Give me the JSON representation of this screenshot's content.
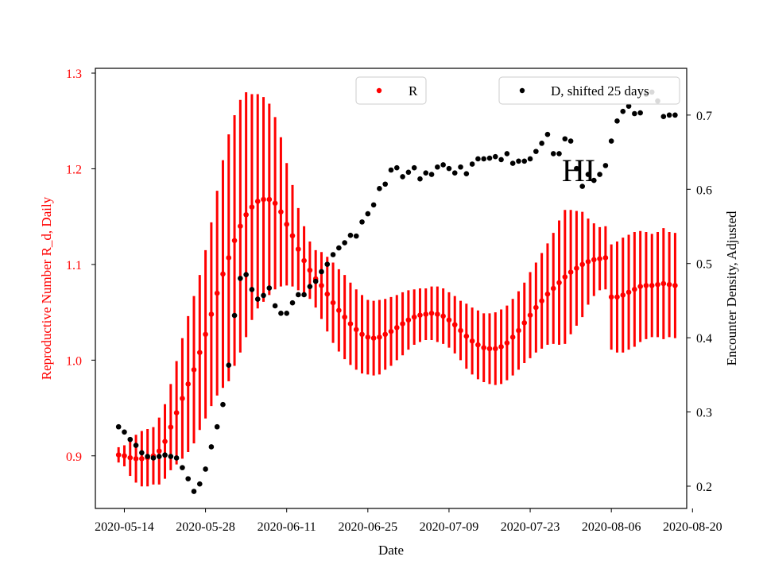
{
  "colors": {
    "r_series": "#ff0000",
    "d_series": "#000000",
    "axis": "#000000",
    "background": "#ffffff"
  },
  "chart_data": {
    "type": "scatter",
    "title": "",
    "xlabel": "Date",
    "ylabel_left": "Reproductive Number R_d, Daily",
    "ylabel_right": "Encounter Density, Adjusted",
    "x_ticks": [
      "2020-05-14",
      "2020-05-28",
      "2020-06-11",
      "2020-06-25",
      "2020-07-09",
      "2020-07-23",
      "2020-08-06",
      "2020-08-20"
    ],
    "y_left_ticks": [
      "0.9",
      "1.0",
      "1.1",
      "1.2",
      "1.3"
    ],
    "y_right_ticks": [
      "0.2",
      "0.3",
      "0.4",
      "0.5",
      "0.6",
      "0.7"
    ],
    "xlim": [
      "2020-05-09",
      "2020-08-19"
    ],
    "ylim_left": [
      0.845,
      1.305
    ],
    "ylim_right": [
      0.17,
      0.763
    ],
    "annotation": "HI",
    "grid": false,
    "legend": [
      {
        "label": "R",
        "placement": "top-center"
      },
      {
        "label": "D, shifted 25 days",
        "placement": "top-right"
      }
    ],
    "series": [
      {
        "name": "R",
        "axis": "left",
        "color": "#ff0000",
        "marker": "dot with error bar",
        "x": [
          "2020-05-13",
          "2020-05-14",
          "2020-05-15",
          "2020-05-16",
          "2020-05-17",
          "2020-05-18",
          "2020-05-19",
          "2020-05-20",
          "2020-05-21",
          "2020-05-22",
          "2020-05-23",
          "2020-05-24",
          "2020-05-25",
          "2020-05-26",
          "2020-05-27",
          "2020-05-28",
          "2020-05-29",
          "2020-05-30",
          "2020-05-31",
          "2020-06-01",
          "2020-06-02",
          "2020-06-03",
          "2020-06-04",
          "2020-06-05",
          "2020-06-06",
          "2020-06-07",
          "2020-06-08",
          "2020-06-09",
          "2020-06-10",
          "2020-06-11",
          "2020-06-12",
          "2020-06-13",
          "2020-06-14",
          "2020-06-15",
          "2020-06-16",
          "2020-06-17",
          "2020-06-18",
          "2020-06-19",
          "2020-06-20",
          "2020-06-21",
          "2020-06-22",
          "2020-06-23",
          "2020-06-24",
          "2020-06-25",
          "2020-06-26",
          "2020-06-27",
          "2020-06-28",
          "2020-06-29",
          "2020-06-30",
          "2020-07-01",
          "2020-07-02",
          "2020-07-03",
          "2020-07-04",
          "2020-07-05",
          "2020-07-06",
          "2020-07-07",
          "2020-07-08",
          "2020-07-09",
          "2020-07-10",
          "2020-07-11",
          "2020-07-12",
          "2020-07-13",
          "2020-07-14",
          "2020-07-15",
          "2020-07-16",
          "2020-07-17",
          "2020-07-18",
          "2020-07-19",
          "2020-07-20",
          "2020-07-21",
          "2020-07-22",
          "2020-07-23",
          "2020-07-24",
          "2020-07-25",
          "2020-07-26",
          "2020-07-27",
          "2020-07-28",
          "2020-07-29",
          "2020-07-30",
          "2020-07-31",
          "2020-08-01",
          "2020-08-02",
          "2020-08-03",
          "2020-08-04",
          "2020-08-05",
          "2020-08-06",
          "2020-08-07",
          "2020-08-08",
          "2020-08-09",
          "2020-08-10",
          "2020-08-11",
          "2020-08-12",
          "2020-08-13",
          "2020-08-14",
          "2020-08-15",
          "2020-08-16",
          "2020-08-17"
        ],
        "y": [
          0.901,
          0.9,
          0.898,
          0.897,
          0.897,
          0.898,
          0.9,
          0.905,
          0.915,
          0.93,
          0.945,
          0.96,
          0.975,
          0.99,
          1.008,
          1.027,
          1.048,
          1.07,
          1.09,
          1.107,
          1.125,
          1.14,
          1.152,
          1.16,
          1.166,
          1.168,
          1.168,
          1.164,
          1.155,
          1.142,
          1.13,
          1.116,
          1.104,
          1.094,
          1.085,
          1.078,
          1.069,
          1.06,
          1.052,
          1.045,
          1.038,
          1.032,
          1.027,
          1.024,
          1.023,
          1.024,
          1.027,
          1.03,
          1.034,
          1.038,
          1.042,
          1.045,
          1.047,
          1.048,
          1.049,
          1.048,
          1.046,
          1.042,
          1.037,
          1.031,
          1.025,
          1.02,
          1.016,
          1.013,
          1.012,
          1.012,
          1.014,
          1.018,
          1.024,
          1.031,
          1.039,
          1.047,
          1.055,
          1.062,
          1.069,
          1.075,
          1.081,
          1.087,
          1.092,
          1.096,
          1.1,
          1.103,
          1.105,
          1.106,
          1.107,
          1.066,
          1.066,
          1.068,
          1.071,
          1.074,
          1.077,
          1.078,
          1.078,
          1.079,
          1.08,
          1.079,
          1.078
        ],
        "err": [
          0.008,
          0.011,
          0.019,
          0.025,
          0.029,
          0.03,
          0.03,
          0.035,
          0.039,
          0.045,
          0.054,
          0.063,
          0.071,
          0.077,
          0.081,
          0.088,
          0.096,
          0.107,
          0.119,
          0.129,
          0.131,
          0.132,
          0.128,
          0.118,
          0.112,
          0.107,
          0.1,
          0.09,
          0.078,
          0.064,
          0.053,
          0.043,
          0.036,
          0.03,
          0.03,
          0.035,
          0.039,
          0.042,
          0.043,
          0.044,
          0.043,
          0.042,
          0.041,
          0.039,
          0.039,
          0.039,
          0.037,
          0.036,
          0.034,
          0.033,
          0.031,
          0.029,
          0.028,
          0.027,
          0.028,
          0.029,
          0.029,
          0.029,
          0.03,
          0.031,
          0.034,
          0.035,
          0.036,
          0.036,
          0.037,
          0.038,
          0.039,
          0.039,
          0.04,
          0.041,
          0.042,
          0.045,
          0.047,
          0.05,
          0.053,
          0.058,
          0.065,
          0.07,
          0.065,
          0.06,
          0.055,
          0.045,
          0.038,
          0.033,
          0.033,
          0.055,
          0.058,
          0.06,
          0.06,
          0.06,
          0.058,
          0.056,
          0.054,
          0.055,
          0.058,
          0.055,
          0.055
        ]
      },
      {
        "name": "D, shifted 25 days",
        "axis": "right",
        "color": "#000000",
        "marker": "dot",
        "x": [
          "2020-05-13",
          "2020-05-14",
          "2020-05-15",
          "2020-05-16",
          "2020-05-17",
          "2020-05-18",
          "2020-05-19",
          "2020-05-20",
          "2020-05-21",
          "2020-05-22",
          "2020-05-23",
          "2020-05-24",
          "2020-05-25",
          "2020-05-26",
          "2020-05-27",
          "2020-05-28",
          "2020-05-29",
          "2020-05-30",
          "2020-05-31",
          "2020-06-01",
          "2020-06-02",
          "2020-06-03",
          "2020-06-04",
          "2020-06-05",
          "2020-06-06",
          "2020-06-07",
          "2020-06-08",
          "2020-06-09",
          "2020-06-10",
          "2020-06-11",
          "2020-06-12",
          "2020-06-13",
          "2020-06-14",
          "2020-06-15",
          "2020-06-16",
          "2020-06-17",
          "2020-06-18",
          "2020-06-19",
          "2020-06-20",
          "2020-06-21",
          "2020-06-22",
          "2020-06-23",
          "2020-06-24",
          "2020-06-25",
          "2020-06-26",
          "2020-06-27",
          "2020-06-28",
          "2020-06-29",
          "2020-06-30",
          "2020-07-01",
          "2020-07-02",
          "2020-07-03",
          "2020-07-04",
          "2020-07-05",
          "2020-07-06",
          "2020-07-07",
          "2020-07-08",
          "2020-07-09",
          "2020-07-10",
          "2020-07-11",
          "2020-07-12",
          "2020-07-13",
          "2020-07-14",
          "2020-07-15",
          "2020-07-16",
          "2020-07-17",
          "2020-07-18",
          "2020-07-19",
          "2020-07-20",
          "2020-07-21",
          "2020-07-22",
          "2020-07-23",
          "2020-07-24",
          "2020-07-25",
          "2020-07-26",
          "2020-07-27",
          "2020-07-28",
          "2020-07-29",
          "2020-07-30",
          "2020-07-31",
          "2020-08-01",
          "2020-08-02",
          "2020-08-03",
          "2020-08-04",
          "2020-08-05",
          "2020-08-06",
          "2020-08-07",
          "2020-08-08",
          "2020-08-09",
          "2020-08-10",
          "2020-08-11",
          "2020-08-12",
          "2020-08-13",
          "2020-08-14",
          "2020-08-15",
          "2020-08-16",
          "2020-08-17"
        ],
        "y": [
          0.28,
          0.273,
          0.263,
          0.255,
          0.245,
          0.24,
          0.238,
          0.24,
          0.242,
          0.24,
          0.238,
          0.225,
          0.21,
          0.193,
          0.203,
          0.223,
          0.253,
          0.28,
          0.31,
          0.363,
          0.43,
          0.48,
          0.485,
          0.465,
          0.452,
          0.457,
          0.467,
          0.443,
          0.433,
          0.433,
          0.447,
          0.458,
          0.458,
          0.469,
          0.476,
          0.489,
          0.499,
          0.512,
          0.521,
          0.528,
          0.538,
          0.537,
          0.556,
          0.567,
          0.579,
          0.601,
          0.607,
          0.626,
          0.629,
          0.617,
          0.623,
          0.629,
          0.614,
          0.622,
          0.62,
          0.63,
          0.633,
          0.628,
          0.622,
          0.63,
          0.621,
          0.634,
          0.641,
          0.641,
          0.642,
          0.644,
          0.64,
          0.648,
          0.635,
          0.638,
          0.638,
          0.641,
          0.651,
          0.662,
          0.674,
          0.648,
          0.648,
          0.668,
          0.665,
          0.628,
          0.604,
          0.62,
          0.612,
          0.62,
          0.632,
          0.665,
          0.692,
          0.705,
          0.712,
          0.702,
          0.703,
          0.728,
          0.731,
          0.719,
          0.698,
          0.7,
          0.7
        ],
        "points_without_marker_note": ""
      }
    ]
  }
}
